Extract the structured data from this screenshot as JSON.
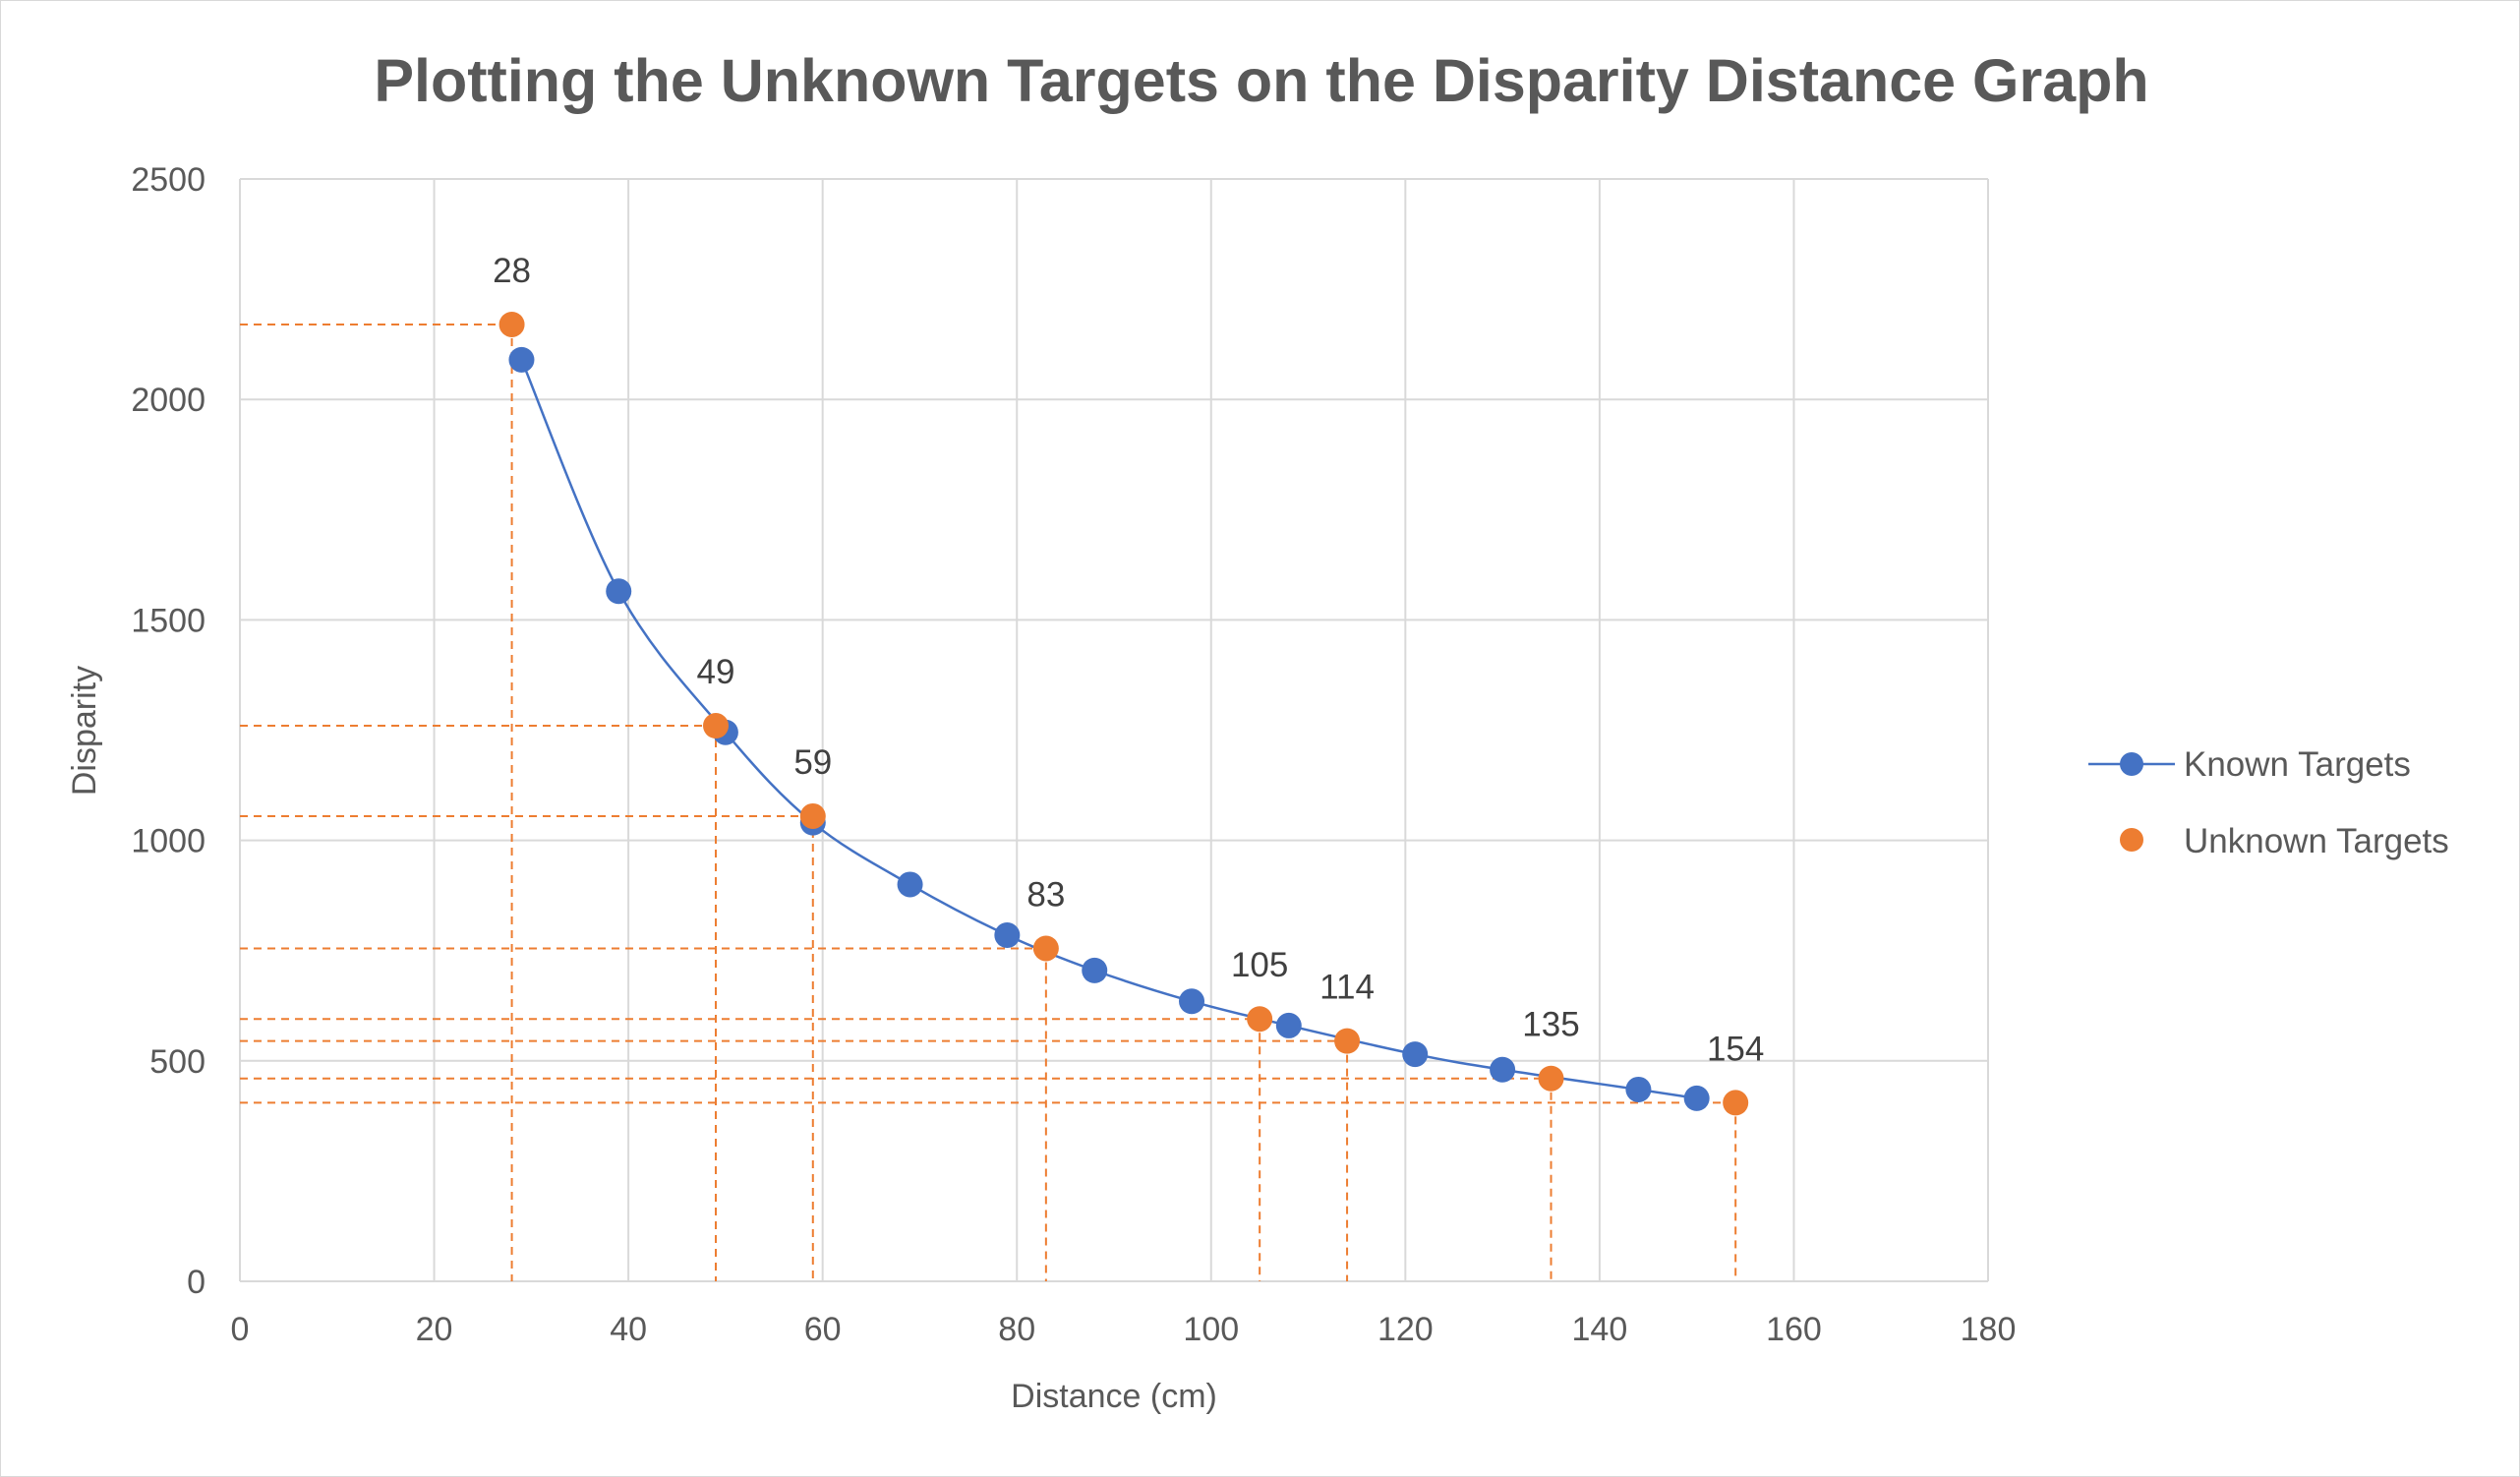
{
  "chart_data": {
    "type": "scatter",
    "title": "Plotting the Unknown Targets on the Disparity Distance Graph",
    "xlabel": "Distance (cm)",
    "ylabel": "Disparity",
    "xlim": [
      0,
      180
    ],
    "ylim": [
      0,
      2500
    ],
    "x_ticks": [
      "0",
      "20",
      "40",
      "60",
      "80",
      "100",
      "120",
      "140",
      "160",
      "180"
    ],
    "y_ticks": [
      "0",
      "500",
      "1000",
      "1500",
      "2000",
      "2500"
    ],
    "grid": true,
    "legend_position": "right",
    "colors": {
      "known": "#4472c4",
      "unknown": "#ed7d31"
    },
    "series": [
      {
        "name": "Known Targets",
        "style": "smooth-line-with-markers",
        "x": [
          29,
          39,
          50,
          59,
          69,
          79,
          88,
          98,
          108,
          121,
          130,
          144,
          150
        ],
        "y": [
          2090,
          1565,
          1245,
          1040,
          900,
          785,
          705,
          635,
          580,
          515,
          480,
          435,
          415
        ]
      },
      {
        "name": "Unknown Targets",
        "style": "markers",
        "x": [
          28,
          49,
          59,
          83,
          105,
          114,
          135,
          154
        ],
        "y": [
          2170,
          1260,
          1055,
          755,
          595,
          545,
          460,
          405
        ],
        "labels": [
          "28",
          "49",
          "59",
          "83",
          "105",
          "114",
          "135",
          "154"
        ],
        "drop_lines": true
      }
    ]
  }
}
